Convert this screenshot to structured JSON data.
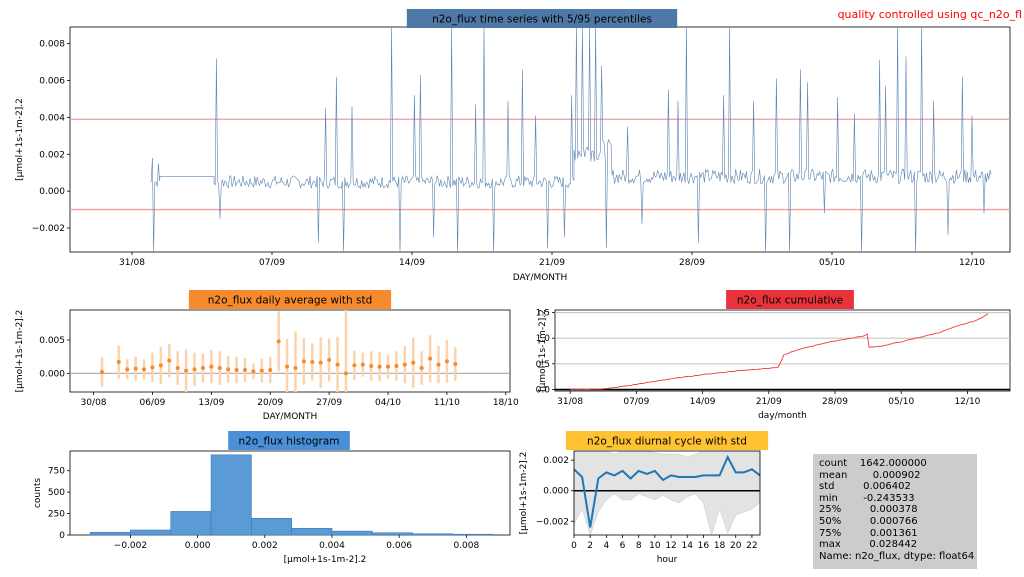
{
  "header": {
    "qc_note": "quality controlled using qc_n2o_fl"
  },
  "colors": {
    "timeseries": "#5b83b0",
    "threshold": "#f29d9d",
    "daily_title_bg": "#f58b2c",
    "cumulative_title_bg": "#e8323c",
    "histogram_title_bg": "#4a90d9",
    "diurnal_title_bg": "#ffc233",
    "timeseries_title_bg": "#4e79a7"
  },
  "chart_data": [
    {
      "id": "timeseries",
      "type": "line",
      "title": "n2o_flux time series with 5/95 percentiles",
      "xlabel": "DAY/MONTH",
      "ylabel": "[μmol+1s-1m-2].2",
      "x_ticks": [
        "31/08",
        "07/09",
        "14/09",
        "21/09",
        "28/09",
        "05/10",
        "12/10"
      ],
      "x_range_days": [
        -3.1,
        43.9
      ],
      "y_ticks": [
        "−0.002",
        "0.000",
        "0.002",
        "0.004",
        "0.006",
        "0.008"
      ],
      "ylim": [
        -0.0033,
        0.0089
      ],
      "percentiles": {
        "p5": -0.001,
        "p95": 0.0039
      },
      "segments": [
        {
          "start": 0.9,
          "end": 1.4,
          "base": 0.0005,
          "noise": 0.0003,
          "spikes": [
            [
              1.0,
              0.0018
            ],
            [
              1.1,
              -0.0033
            ],
            [
              1.3,
              0.0015
            ]
          ]
        },
        {
          "start": 1.4,
          "end": 4.1,
          "base": 0.0008,
          "noise": 0.0,
          "spikes": []
        },
        {
          "start": 4.1,
          "end": 22.1,
          "base": 0.0005,
          "noise": 0.00035,
          "spikes": [
            [
              4.2,
              0.0072
            ],
            [
              4.4,
              -0.0015
            ],
            [
              9.3,
              -0.0028
            ],
            [
              9.7,
              0.0045
            ],
            [
              10.2,
              0.0062
            ],
            [
              10.6,
              -0.0033
            ],
            [
              11.0,
              0.0046
            ],
            [
              13.0,
              0.0089
            ],
            [
              13.4,
              -0.0033
            ],
            [
              14.1,
              0.0052
            ],
            [
              14.4,
              0.0063
            ],
            [
              15.1,
              -0.0025
            ],
            [
              16.0,
              0.0089
            ],
            [
              16.3,
              -0.0033
            ],
            [
              17.2,
              0.0047
            ],
            [
              17.6,
              0.0089
            ],
            [
              18.1,
              -0.0033
            ],
            [
              18.8,
              0.0049
            ],
            [
              19.5,
              0.0066
            ],
            [
              20.2,
              0.0041
            ],
            [
              20.8,
              -0.0031
            ],
            [
              21.6,
              -0.0025
            ],
            [
              22.0,
              0.0052
            ]
          ]
        },
        {
          "start": 22.1,
          "end": 24.0,
          "base": 0.0022,
          "noise": 0.0006,
          "spikes": [
            [
              22.2,
              0.0089
            ],
            [
              22.5,
              0.0089
            ],
            [
              22.9,
              0.0089
            ],
            [
              23.2,
              0.0089
            ],
            [
              23.5,
              0.0068
            ],
            [
              23.7,
              -0.0031
            ]
          ]
        },
        {
          "start": 24.0,
          "end": 43.0,
          "base": 0.0008,
          "noise": 0.0004,
          "spikes": [
            [
              24.8,
              0.0035
            ],
            [
              25.5,
              -0.0018
            ],
            [
              26.8,
              0.0055
            ],
            [
              27.3,
              0.0049
            ],
            [
              27.7,
              0.0089
            ],
            [
              28.3,
              -0.0028
            ],
            [
              29.6,
              0.0052
            ],
            [
              29.9,
              0.0089
            ],
            [
              31.1,
              0.0049
            ],
            [
              31.7,
              -0.0033
            ],
            [
              32.2,
              0.0061
            ],
            [
              32.9,
              -0.0033
            ],
            [
              33.4,
              0.0066
            ],
            [
              33.8,
              0.0059
            ],
            [
              34.6,
              -0.0012
            ],
            [
              35.3,
              0.0051
            ],
            [
              36.1,
              0.0042
            ],
            [
              36.5,
              -0.0033
            ],
            [
              37.4,
              0.0071
            ],
            [
              37.7,
              0.0057
            ],
            [
              38.3,
              0.0089
            ],
            [
              38.7,
              0.0073
            ],
            [
              39.2,
              -0.0033
            ],
            [
              39.5,
              0.0089
            ],
            [
              40.1,
              0.0049
            ],
            [
              40.8,
              -0.0024
            ],
            [
              41.5,
              0.0062
            ],
            [
              42.0,
              0.0041
            ],
            [
              42.6,
              -0.0012
            ]
          ]
        }
      ]
    },
    {
      "id": "daily",
      "type": "scatter",
      "title": "n2o_flux daily average with std",
      "xlabel": "DAY/MONTH",
      "ylabel": "[μmol+1s-1m-2].2",
      "x_ticks": [
        "30/08",
        "06/09",
        "13/09",
        "20/09",
        "27/09",
        "04/10",
        "11/10",
        "18/10"
      ],
      "y_ticks": [
        "0.000",
        "0.005"
      ],
      "ylim": [
        -0.0028,
        0.0095
      ],
      "days": [
        1,
        2,
        3,
        4,
        5,
        6,
        7,
        8,
        9,
        10,
        11,
        12,
        13,
        14,
        15,
        16,
        17,
        18,
        19,
        20,
        21,
        22,
        23,
        24,
        25,
        26,
        27,
        28,
        29,
        30,
        31,
        32,
        33,
        34,
        35,
        36,
        37,
        38,
        39,
        40,
        41,
        42,
        43
      ],
      "values": [
        0.0002,
        null,
        0.0017,
        0.0006,
        0.0007,
        0.0006,
        0.0009,
        0.0012,
        0.0019,
        0.0008,
        0.0004,
        0.0006,
        0.0008,
        0.001,
        0.0008,
        0.0006,
        0.0005,
        0.0005,
        0.0003,
        0.0004,
        0.0005,
        0.0048,
        0.001,
        0.0008,
        0.0018,
        0.0017,
        0.0016,
        0.002,
        0.0013,
        0.0,
        0.0012,
        0.0013,
        0.0011,
        0.001,
        0.001,
        0.0011,
        0.0013,
        0.0016,
        0.0008,
        0.0022,
        0.0013,
        0.0018,
        0.0014
      ],
      "stds": [
        0.0022,
        0,
        0.0025,
        0.0015,
        0.0018,
        0.0015,
        0.0022,
        0.0028,
        0.0025,
        0.0025,
        0.0032,
        0.0025,
        0.0022,
        0.0025,
        0.0025,
        0.002,
        0.002,
        0.0018,
        0.0012,
        0.0018,
        0.002,
        0.0045,
        0.0042,
        0.0055,
        0.0035,
        0.0028,
        0.0038,
        0.0032,
        0.0042,
        0.0095,
        0.0022,
        0.0018,
        0.0022,
        0.0022,
        0.0018,
        0.0022,
        0.0028,
        0.0038,
        0.0025,
        0.0035,
        0.0028,
        0.0032,
        0.0025
      ]
    },
    {
      "id": "cumulative",
      "type": "line",
      "title": "n2o_flux cumulative",
      "xlabel": "day/month",
      "ylabel": "[μmol+1s-1m-2].2",
      "x_ticks": [
        "31/08",
        "07/09",
        "14/09",
        "21/09",
        "28/09",
        "05/10",
        "12/10"
      ],
      "y_ticks": [
        "0.0",
        "0.5",
        "1.0",
        "1.5"
      ],
      "ylim": [
        -0.03,
        1.55
      ],
      "points": [
        [
          0,
          0.0
        ],
        [
          2,
          0.0
        ],
        [
          4,
          0.02
        ],
        [
          6,
          0.07
        ],
        [
          8,
          0.13
        ],
        [
          10,
          0.19
        ],
        [
          12,
          0.24
        ],
        [
          14,
          0.29
        ],
        [
          16,
          0.33
        ],
        [
          18,
          0.37
        ],
        [
          20,
          0.4
        ],
        [
          22,
          0.43
        ],
        [
          22.6,
          0.67
        ],
        [
          23.5,
          0.74
        ],
        [
          25,
          0.82
        ],
        [
          27,
          0.91
        ],
        [
          29,
          0.98
        ],
        [
          31,
          1.04
        ],
        [
          31.4,
          1.08
        ],
        [
          31.6,
          0.82
        ],
        [
          33,
          0.85
        ],
        [
          35,
          0.93
        ],
        [
          37,
          1.02
        ],
        [
          39,
          1.11
        ],
        [
          41,
          1.24
        ],
        [
          43,
          1.35
        ],
        [
          44.2,
          1.48
        ]
      ]
    },
    {
      "id": "histogram",
      "type": "bar",
      "title": "n2o_flux histogram",
      "xlabel": "[μmol+1s-1m-2].2",
      "ylabel": "counts",
      "x_ticks": [
        "−0.002",
        "0.000",
        "0.002",
        "0.004",
        "0.006",
        "0.008"
      ],
      "y_ticks": [
        "0",
        "250",
        "500",
        "750"
      ],
      "ylim": [
        0,
        980
      ],
      "bin_edges": [
        -0.0032,
        -0.002,
        -0.0008,
        0.0004,
        0.0016,
        0.0028,
        0.004,
        0.0052,
        0.0064,
        0.0076,
        0.0088
      ],
      "counts": [
        32,
        58,
        275,
        935,
        195,
        78,
        45,
        26,
        14,
        9
      ]
    },
    {
      "id": "diurnal",
      "type": "line",
      "title": "n2o_flux diurnal cycle with std",
      "xlabel": "hour",
      "ylabel": "[μmol+1s-1m-2].2",
      "x_ticks": [
        "0",
        "2",
        "4",
        "6",
        "8",
        "10",
        "12",
        "14",
        "16",
        "18",
        "20",
        "22"
      ],
      "y_ticks": [
        "−0.002",
        "0.000",
        "0.002"
      ],
      "xlim": [
        0,
        23
      ],
      "ylim": [
        -0.0029,
        0.0026
      ],
      "hours": [
        0,
        1,
        2,
        3,
        4,
        5,
        6,
        7,
        8,
        9,
        10,
        11,
        12,
        13,
        14,
        15,
        16,
        17,
        18,
        19,
        20,
        21,
        22,
        23
      ],
      "values": [
        0.0014,
        0.0009,
        -0.0024,
        0.0008,
        0.0012,
        0.001,
        0.0013,
        0.0008,
        0.0013,
        0.0011,
        0.0013,
        0.0007,
        0.001,
        0.0009,
        0.0009,
        0.0009,
        0.001,
        0.001,
        0.001,
        0.0022,
        0.0012,
        0.0012,
        0.0014,
        0.001
      ],
      "upper": [
        0.0026,
        0.0026,
        0.0026,
        0.0026,
        0.0026,
        0.0024,
        0.0026,
        0.0026,
        0.0026,
        0.0026,
        0.0025,
        0.0024,
        0.0024,
        0.0024,
        0.0022,
        0.0024,
        0.0026,
        0.0026,
        0.0026,
        0.0026,
        0.0026,
        0.0026,
        0.0026,
        0.0026
      ],
      "lower": [
        -0.0022,
        -0.0012,
        -0.0029,
        -0.0014,
        -0.0006,
        -0.0002,
        -0.0006,
        -0.0006,
        -0.0002,
        -0.0004,
        -0.0006,
        -0.0003,
        -0.0006,
        -0.0008,
        -0.0004,
        -0.0002,
        -0.0008,
        -0.0029,
        -0.0012,
        -0.0028,
        -0.0016,
        -0.0014,
        -0.0012,
        -0.0008
      ]
    }
  ],
  "stats": {
    "text": "count    1642.000000\nmean        0.000902\nstd         0.006402\nmin        -0.243533\n25%         0.000378\n50%         0.000766\n75%         0.001361\nmax         0.028442\nName: n2o_flux, dtype: float64"
  }
}
